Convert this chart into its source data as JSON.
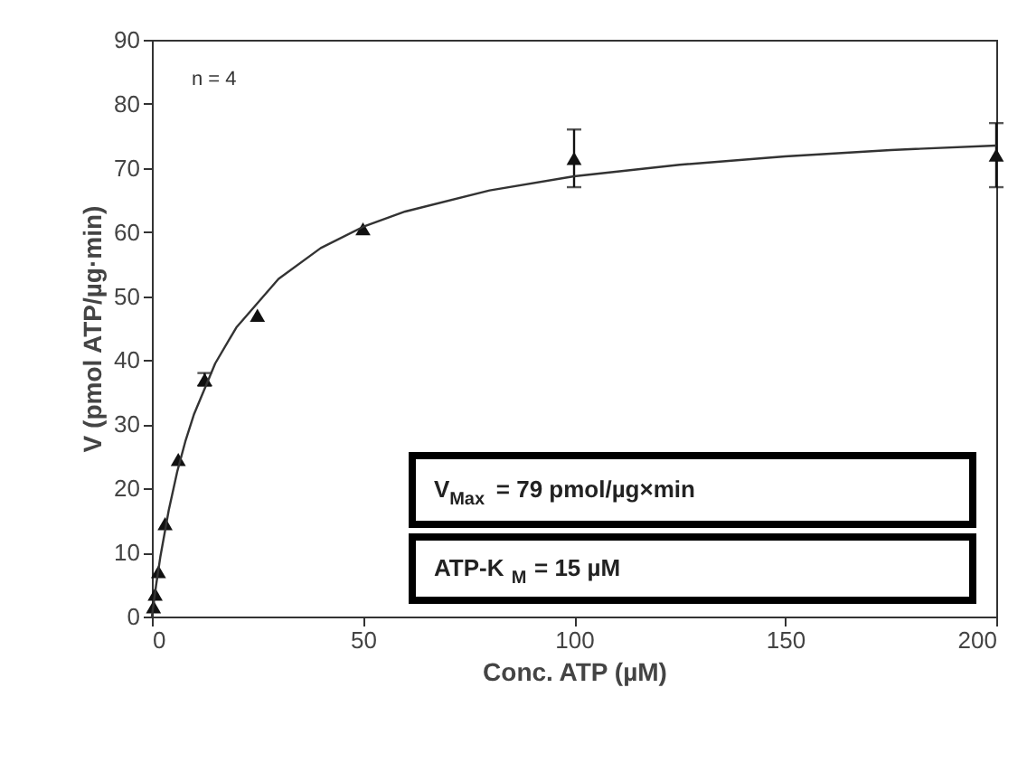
{
  "chart_data": {
    "type": "scatter",
    "xlabel": "Conc. ATP (µM)",
    "ylabel": "V (pmol ATP/µg·min)",
    "xlim": [
      0,
      200
    ],
    "xticks": [
      0,
      50,
      100,
      150,
      200
    ],
    "ylim": [
      0,
      90
    ],
    "yticks": [
      0,
      10,
      20,
      30,
      40,
      50,
      60,
      70,
      80,
      90
    ],
    "grid": false,
    "series": [
      {
        "color": "#111111",
        "marker": "triangle",
        "x": [
          0.39,
          0.78,
          1.56,
          3.125,
          6.25,
          12.5,
          25,
          50,
          100,
          200
        ],
        "values": [
          1.5,
          3.5,
          7,
          14.5,
          24.5,
          37,
          47,
          60.5,
          71.5,
          72
        ],
        "errors": [
          null,
          null,
          null,
          null,
          null,
          1,
          null,
          null,
          4.5,
          5
        ]
      },
      {
        "type": "line",
        "color": "#333333",
        "marker": "none",
        "line_style": "solid",
        "x": [
          0,
          1,
          2,
          4,
          6,
          8,
          10,
          15,
          20,
          30,
          40,
          50,
          60,
          80,
          100,
          125,
          150,
          175,
          200
        ],
        "values": [
          0,
          4.9,
          9.3,
          16.6,
          22.6,
          27.5,
          31.6,
          39.5,
          45.1,
          52.7,
          57.5,
          60.8,
          63.2,
          66.5,
          68.7,
          70.5,
          71.8,
          72.8,
          73.5
        ]
      }
    ],
    "annotations": [
      "n = 4",
      "V$_{Max}$ = 79 pmol/µg×min",
      "ATP-K$_{M}$ = 15 µM"
    ]
  }
}
